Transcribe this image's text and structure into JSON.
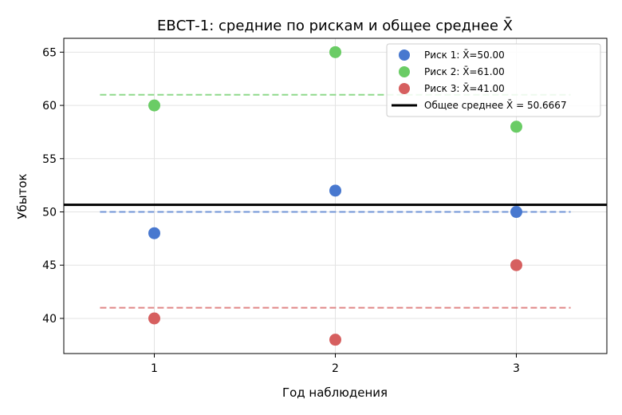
{
  "chart_data": {
    "type": "scatter",
    "title": "ЕВСТ-1: средние по рискам и общее среднее X̄",
    "xlabel": "Год наблюдения",
    "ylabel": "Убыток",
    "xlim": [
      0.5,
      3.5
    ],
    "ylim": [
      36.7,
      66.3
    ],
    "xticks": [
      1,
      2,
      3
    ],
    "yticks": [
      40,
      45,
      50,
      55,
      60,
      65
    ],
    "grid": true,
    "legend_position": "top-right",
    "series": [
      {
        "name": "Риск 1: X̄=50.00",
        "color": "#4878cf",
        "x": [
          1,
          2,
          3
        ],
        "y": [
          48,
          52,
          50
        ],
        "mean": 50.0
      },
      {
        "name": "Риск 2: X̄=61.00",
        "color": "#6acc65",
        "x": [
          1,
          2,
          3
        ],
        "y": [
          60,
          65,
          58
        ],
        "mean": 61.0
      },
      {
        "name": "Риск 3: X̄=41.00",
        "color": "#d65f5f",
        "x": [
          1,
          2,
          3
        ],
        "y": [
          40,
          38,
          45
        ],
        "mean": 41.0
      }
    ],
    "overall_mean": {
      "name": "Общее среднее X̄ = 50.6667",
      "value": 50.6667,
      "color": "#000000"
    },
    "mean_line_x_range": [
      0.7,
      3.3
    ]
  }
}
